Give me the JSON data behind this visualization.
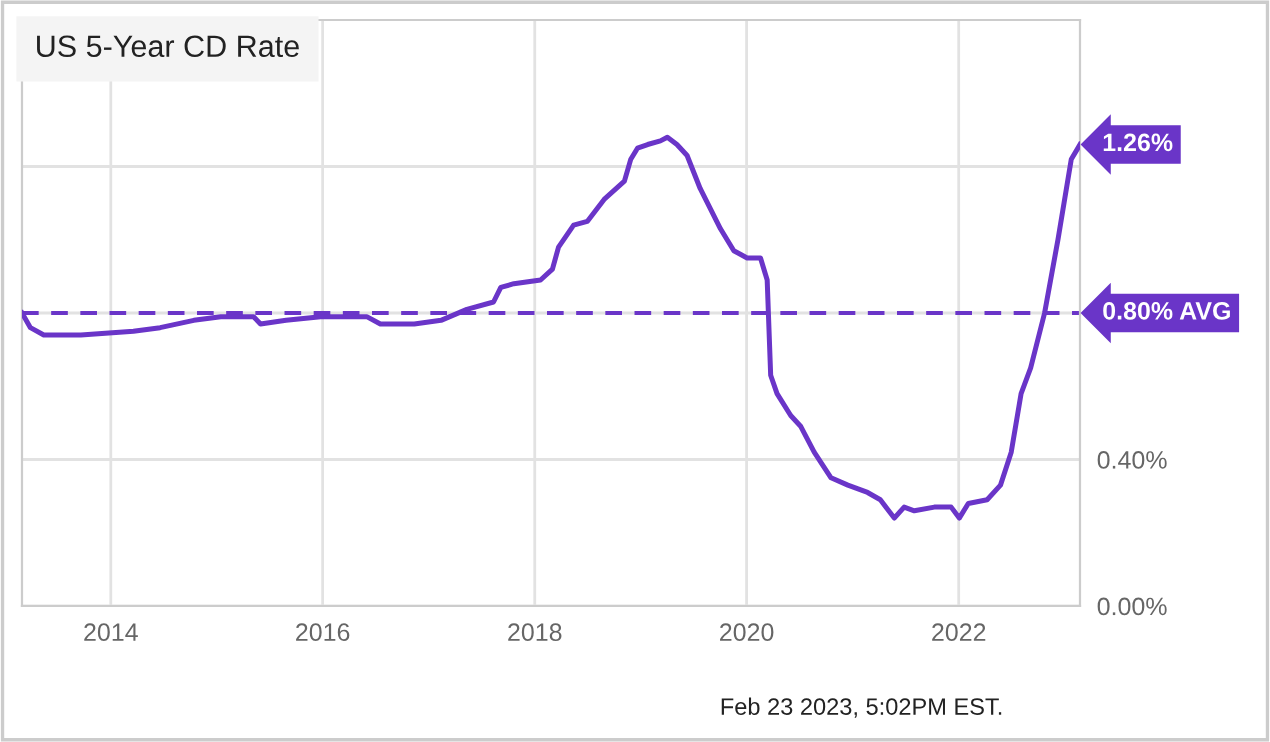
{
  "chart_data": {
    "type": "line",
    "title": "US 5-Year CD Rate",
    "x": [
      "2013-03-01",
      "2013-03-30",
      "2013-05-15",
      "2013-09-20",
      "2014-03-20",
      "2014-06-20",
      "2014-10-14",
      "2015-01-15",
      "2015-05-08",
      "2015-06-01",
      "2015-08-28",
      "2015-12-25",
      "2016-06-01",
      "2016-07-18",
      "2016-11-12",
      "2017-02-12",
      "2017-05-12",
      "2017-08-12",
      "2017-09-06",
      "2017-10-21",
      "2018-01-21",
      "2018-03-03",
      "2018-03-24",
      "2018-05-15",
      "2018-07-01",
      "2018-08-28",
      "2018-11-06",
      "2018-11-28",
      "2018-12-21",
      "2019-01-25",
      "2019-03-10",
      "2019-04-03",
      "2019-05-06",
      "2019-06-10",
      "2019-07-25",
      "2019-10-03",
      "2019-11-18",
      "2020-01-03",
      "2020-02-18",
      "2020-03-12",
      "2020-03-24",
      "2020-04-15",
      "2020-06-01",
      "2020-07-06",
      "2020-08-21",
      "2020-10-18",
      "2020-12-15",
      "2021-02-21",
      "2021-04-06",
      "2021-05-24",
      "2021-06-27",
      "2021-08-01",
      "2021-10-09",
      "2021-12-06",
      "2022-01-03",
      "2022-02-03",
      "2022-04-09",
      "2022-05-25",
      "2022-07-01",
      "2022-08-04",
      "2022-09-06",
      "2022-10-24",
      "2022-12-09",
      "2023-01-24",
      "2023-02-23"
    ],
    "series": [
      {
        "color": "#6a35c8",
        "values": [
          0.8,
          0.76,
          0.74,
          0.74,
          0.75,
          0.76,
          0.78,
          0.79,
          0.79,
          0.77,
          0.78,
          0.79,
          0.79,
          0.77,
          0.77,
          0.78,
          0.81,
          0.83,
          0.87,
          0.88,
          0.89,
          0.92,
          0.98,
          1.04,
          1.05,
          1.11,
          1.16,
          1.22,
          1.25,
          1.26,
          1.27,
          1.28,
          1.26,
          1.23,
          1.14,
          1.03,
          0.97,
          0.95,
          0.95,
          0.89,
          0.63,
          0.58,
          0.52,
          0.49,
          0.42,
          0.35,
          0.33,
          0.31,
          0.29,
          0.24,
          0.27,
          0.26,
          0.27,
          0.27,
          0.24,
          0.28,
          0.29,
          0.33,
          0.42,
          0.58,
          0.65,
          0.8,
          1.0,
          1.22,
          1.26
        ]
      }
    ],
    "xlim": [
      "2013-03-01",
      "2023-02-23"
    ],
    "xticks": [
      "2014",
      "2016",
      "2018",
      "2020",
      "2022"
    ],
    "ylim": [
      0,
      1.6
    ],
    "yticks": [
      {
        "value": 0,
        "label": "0.00%"
      },
      {
        "value": 0.4,
        "label": "0.40%"
      },
      {
        "value": 0.8,
        "label": null
      },
      {
        "value": 1.2,
        "label": null
      }
    ],
    "ref_lines": [
      {
        "axis": "y",
        "value": 0.8,
        "label": "0.80% AVG",
        "color": "#6a35c8",
        "line_style": "dashed"
      }
    ],
    "annotations": [
      {
        "text": "1.26%",
        "x": "2023-02-23",
        "y": 1.26
      },
      "Feb 23 2023, 5:02PM EST."
    ],
    "grid": true,
    "line_style": "solid",
    "marker": "none"
  }
}
